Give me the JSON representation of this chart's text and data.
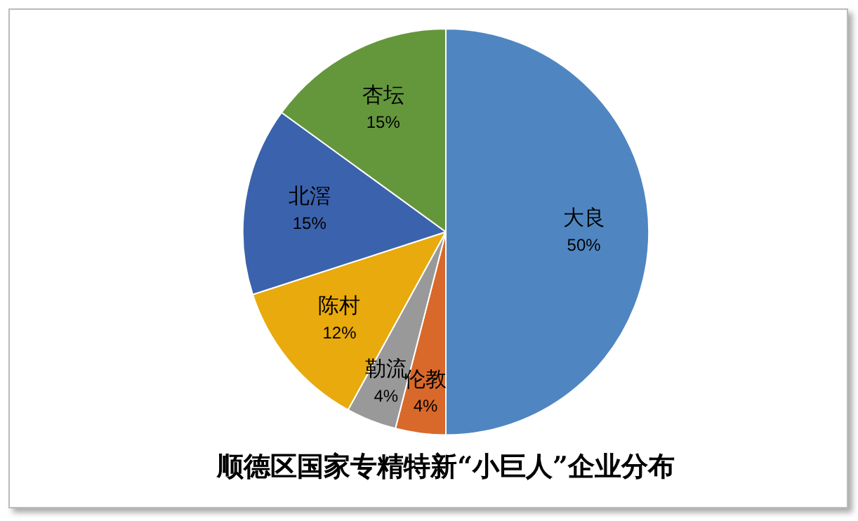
{
  "chart_data": {
    "type": "pie",
    "title": "顺德区国家专精特新“小巨人”企业分布",
    "categories": [
      "大良",
      "伦教",
      "勒流",
      "陈村",
      "北滘",
      "杏坛"
    ],
    "values": [
      50,
      4,
      4,
      12,
      15,
      15
    ],
    "value_labels": [
      "50%",
      "4%",
      "4%",
      "12%",
      "15%",
      "15%"
    ],
    "colors": [
      "#4f86c1",
      "#d8692b",
      "#999999",
      "#e8aa0c",
      "#3b62ac",
      "#64973c"
    ],
    "legend": false
  }
}
